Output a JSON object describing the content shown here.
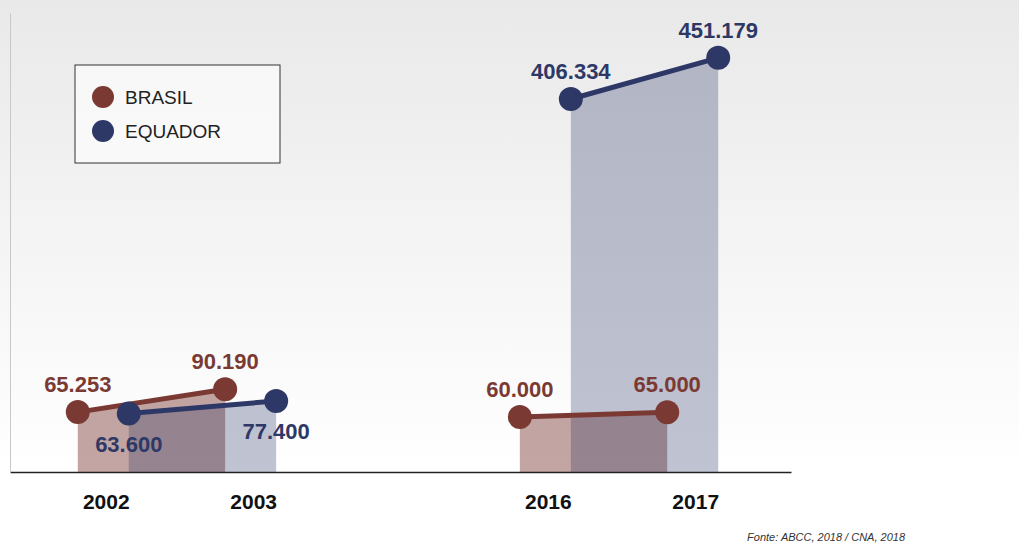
{
  "chart_data": {
    "type": "area",
    "categories": [
      "2002",
      "2003",
      null,
      "2016",
      "2017"
    ],
    "series": [
      {
        "name": "BRASIL",
        "color": "#7a3a33",
        "values": [
          65253,
          90190,
          null,
          60000,
          65000
        ],
        "value_labels": [
          "65.253",
          "90.190",
          null,
          "60.000",
          "65.000"
        ]
      },
      {
        "name": "EQUADOR",
        "color": "#2e3866",
        "values": [
          63600,
          77400,
          null,
          406334,
          451179
        ],
        "value_labels": [
          "63.600",
          "77.400",
          null,
          "406.334",
          "451.179"
        ]
      }
    ],
    "ylim": [
      0,
      500000
    ],
    "tick_labels": "x",
    "data_labels": true,
    "marker": "circle",
    "legend": "top-left",
    "source": "Fonte: ABCC, 2018 / CNA, 2018"
  }
}
